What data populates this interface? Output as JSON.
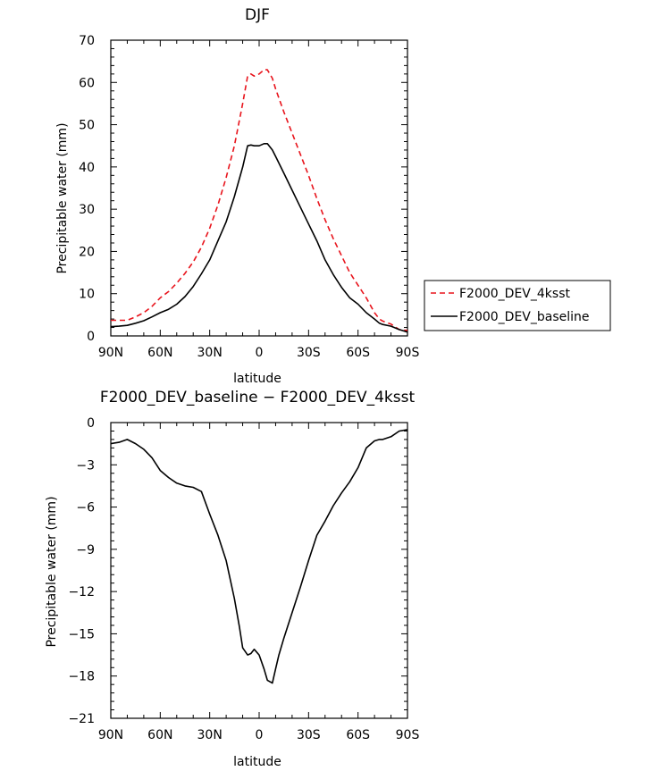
{
  "chart_data": [
    {
      "type": "line",
      "title": "DJF",
      "xlabel": "latitude",
      "ylabel": "Precipitable water (mm)",
      "xlim": [
        90,
        -90
      ],
      "ylim": [
        0,
        70
      ],
      "xticks": [
        90,
        60,
        30,
        0,
        -30,
        -60,
        -90
      ],
      "xtick_labels": [
        "90N",
        "60N",
        "30N",
        "0",
        "30S",
        "60S",
        "90S"
      ],
      "yticks": [
        0,
        10,
        20,
        30,
        40,
        50,
        60,
        70
      ],
      "ytick_labels": [
        "0",
        "10",
        "20",
        "30",
        "40",
        "50",
        "60",
        "70"
      ],
      "legend_position": "right",
      "grid": false,
      "series": [
        {
          "name": "F2000_DEV_4ksst",
          "color": "#e8141c",
          "dash": "dashed",
          "x": [
            90,
            85,
            80,
            75,
            70,
            65,
            60,
            55,
            50,
            45,
            40,
            35,
            30,
            25,
            20,
            15,
            10,
            7,
            5,
            3,
            0,
            -3,
            -5,
            -8,
            -10,
            -15,
            -20,
            -25,
            -30,
            -35,
            -40,
            -45,
            -50,
            -55,
            -60,
            -65,
            -70,
            -73,
            -75,
            -80,
            -85,
            -90
          ],
          "y": [
            3.7,
            3.7,
            3.7,
            4.5,
            5.5,
            7,
            9,
            10.5,
            12.5,
            14.8,
            17.5,
            21,
            25.5,
            31,
            37.5,
            45,
            55,
            61.5,
            62,
            61.5,
            62,
            63,
            63,
            61,
            58.5,
            53,
            48,
            43,
            38,
            32.5,
            27.5,
            23,
            19,
            15,
            12,
            9,
            5.5,
            4,
            3.5,
            2.8,
            1.5,
            1.3
          ]
        },
        {
          "name": "F2000_DEV_baseline",
          "color": "#000000",
          "dash": "solid",
          "x": [
            90,
            85,
            80,
            75,
            70,
            65,
            60,
            55,
            50,
            45,
            40,
            35,
            30,
            25,
            20,
            15,
            10,
            7,
            5,
            3,
            0,
            -3,
            -5,
            -8,
            -10,
            -15,
            -20,
            -25,
            -30,
            -35,
            -40,
            -45,
            -50,
            -55,
            -60,
            -65,
            -70,
            -73,
            -75,
            -80,
            -85,
            -90
          ],
          "y": [
            2.2,
            2.3,
            2.5,
            3,
            3.6,
            4.5,
            5.5,
            6.3,
            7.5,
            9.3,
            11.7,
            14.7,
            18,
            22.5,
            27,
            33,
            40,
            45,
            45.2,
            45,
            45,
            45.5,
            45.5,
            44,
            42.5,
            38.5,
            34.5,
            30.5,
            26.5,
            22.5,
            18,
            14.5,
            11.5,
            9,
            7.5,
            5.5,
            4,
            3,
            2.7,
            2.3,
            1.5,
            0.9
          ]
        }
      ]
    },
    {
      "type": "line",
      "title": "F2000_DEV_baseline − F2000_DEV_4ksst",
      "xlabel": "latitude",
      "ylabel": "Precipitable water (mm)",
      "xlim": [
        90,
        -90
      ],
      "ylim": [
        -21,
        0
      ],
      "xticks": [
        90,
        60,
        30,
        0,
        -30,
        -60,
        -90
      ],
      "xtick_labels": [
        "90N",
        "60N",
        "30N",
        "0",
        "30S",
        "60S",
        "90S"
      ],
      "yticks": [
        0,
        -3,
        -6,
        -9,
        -12,
        -15,
        -18,
        -21
      ],
      "ytick_labels": [
        "0",
        "−3",
        "−6",
        "−9",
        "−12",
        "−15",
        "−18",
        "−21"
      ],
      "grid": false,
      "series": [
        {
          "color": "#000000",
          "dash": "solid",
          "x": [
            90,
            85,
            80,
            75,
            70,
            65,
            60,
            55,
            50,
            45,
            40,
            35,
            30,
            25,
            20,
            15,
            12,
            10,
            7,
            5,
            3,
            0,
            -3,
            -5,
            -8,
            -10,
            -12,
            -15,
            -20,
            -25,
            -30,
            -35,
            -40,
            -45,
            -50,
            -55,
            -60,
            -65,
            -70,
            -73,
            -75,
            -80,
            -85,
            -90
          ],
          "y": [
            -1.5,
            -1.4,
            -1.2,
            -1.5,
            -1.9,
            -2.5,
            -3.4,
            -3.9,
            -4.3,
            -4.5,
            -4.6,
            -4.9,
            -6.5,
            -8.0,
            -9.8,
            -12.5,
            -14.5,
            -16.0,
            -16.5,
            -16.4,
            -16.1,
            -16.5,
            -17.5,
            -18.3,
            -18.5,
            -17.5,
            -16.5,
            -15.3,
            -13.5,
            -11.7,
            -9.8,
            -8.0,
            -7.0,
            -5.9,
            -5.0,
            -4.2,
            -3.2,
            -1.8,
            -1.3,
            -1.2,
            -1.2,
            -1.0,
            -0.6,
            -0.5
          ]
        }
      ]
    }
  ]
}
